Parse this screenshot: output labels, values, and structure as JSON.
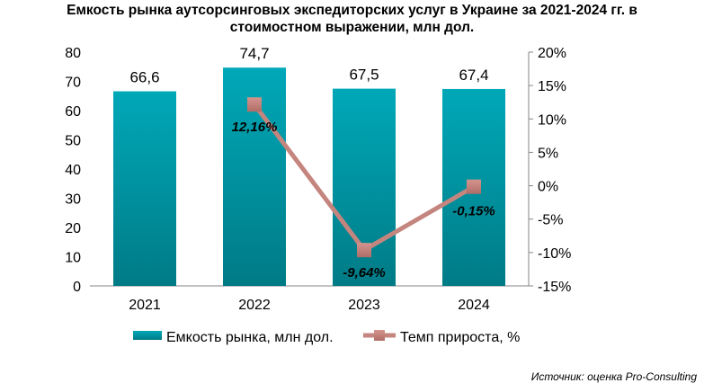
{
  "chart_data": {
    "type": "bar+line",
    "title_line1": "Емкость рынка аутсорсинговых экспедиторских услуг в Украине за 2021-2024 гг. в",
    "title_line2": "стоимостном выражении, млн дол.",
    "categories": [
      "2021",
      "2022",
      "2023",
      "2024"
    ],
    "series": [
      {
        "name": "Емкость рынка, млн дол.",
        "type": "bar",
        "axis": "left",
        "values": [
          66.6,
          74.7,
          67.5,
          67.4
        ],
        "labels": [
          "66,6",
          "74,7",
          "67,5",
          "67,4"
        ],
        "color": "#00a3b3"
      },
      {
        "name": "Темп прироста, %",
        "type": "line",
        "axis": "right",
        "values": [
          null,
          12.16,
          -9.64,
          -0.15
        ],
        "labels": [
          "",
          "12,16%",
          "-9,64%",
          "-0,15%"
        ],
        "color": "#c4857e"
      }
    ],
    "left_axis": {
      "min": 0,
      "max": 80,
      "step": 10,
      "ticks": [
        "0",
        "10",
        "20",
        "30",
        "40",
        "50",
        "60",
        "70",
        "80"
      ]
    },
    "right_axis": {
      "min": -15,
      "max": 20,
      "step": 5,
      "ticks": [
        "-15%",
        "-10%",
        "-5%",
        "0%",
        "5%",
        "10%",
        "15%",
        "20%"
      ]
    },
    "grid": false,
    "legend_position": "bottom"
  },
  "source": "Источник: оценка Pro-Consulting"
}
